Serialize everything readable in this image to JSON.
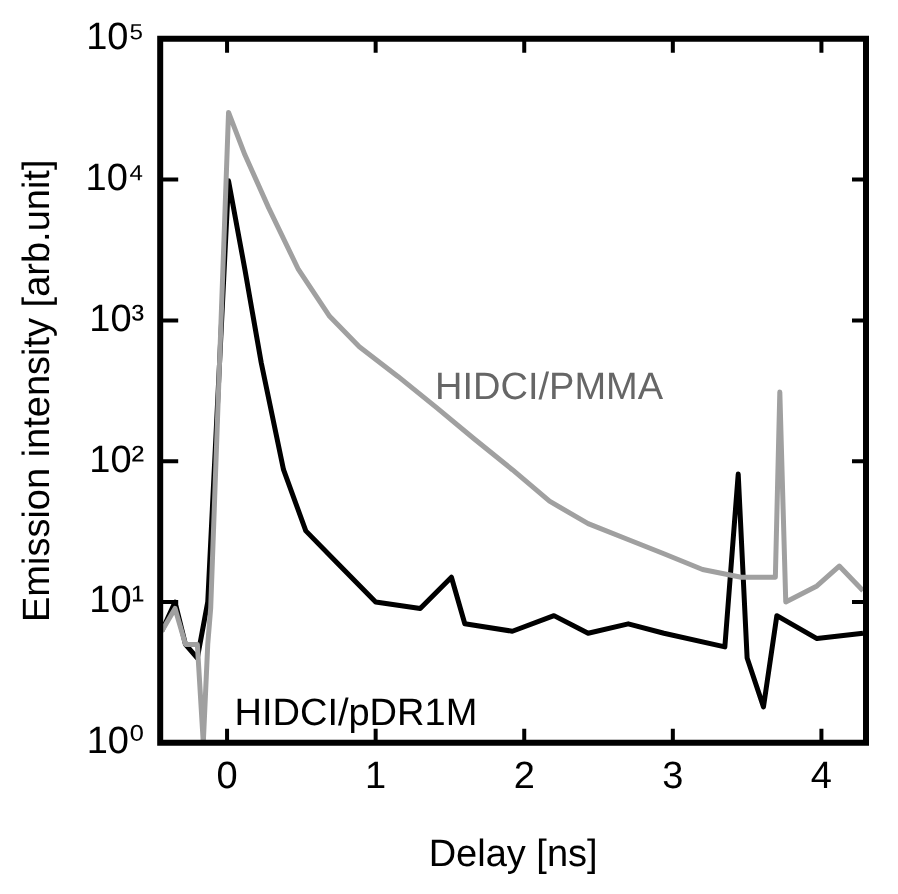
{
  "chart_data": {
    "type": "line",
    "xlabel": "Delay [ns]",
    "ylabel": "Emission intensity [arb.unit]",
    "log": "y",
    "grid": false,
    "legend": false,
    "marker": "none",
    "line_style": "solid",
    "xlim": [
      -0.45,
      4.3
    ],
    "xticks": [
      0,
      1,
      2,
      3,
      4
    ],
    "ylim": [
      1,
      100000
    ],
    "yticks": [
      {
        "value": 1,
        "label": "10⁰"
      },
      {
        "value": 10,
        "label": "10¹"
      },
      {
        "value": 100,
        "label": "10²"
      },
      {
        "value": 1000,
        "label": "10³"
      },
      {
        "value": 10000,
        "label": "10⁴"
      },
      {
        "value": 100000,
        "label": "10⁵"
      }
    ],
    "series": [
      {
        "name": "HIDCI/PMMA",
        "color": "#a0a0a0",
        "x": [
          -0.44,
          -0.35,
          -0.28,
          -0.2,
          -0.16,
          -0.13,
          -0.11,
          0.01,
          0.12,
          0.28,
          0.48,
          0.69,
          0.89,
          1.15,
          1.41,
          1.66,
          1.92,
          2.17,
          2.43,
          2.69,
          2.94,
          3.2,
          3.46,
          3.69,
          3.72,
          3.76,
          3.97,
          4.12,
          4.28
        ],
        "values": [
          6.2,
          9,
          5,
          5,
          1,
          5,
          9.1,
          30000,
          15000,
          6300,
          2300,
          1070,
          650,
          400,
          240,
          145,
          87,
          52,
          36,
          28,
          22,
          17,
          15,
          15,
          310,
          10,
          13,
          18,
          12
        ]
      },
      {
        "name": "HIDCI/pDR1M",
        "color": "#000000",
        "x": [
          -0.44,
          -0.35,
          -0.28,
          -0.2,
          -0.13,
          0.01,
          0.12,
          0.23,
          0.38,
          0.53,
          0.74,
          1.0,
          1.3,
          1.51,
          1.6,
          1.92,
          2.2,
          2.43,
          2.7,
          2.94,
          3.35,
          3.44,
          3.5,
          3.61,
          3.7,
          3.97,
          4.28
        ],
        "values": [
          6.2,
          10,
          5,
          4,
          10,
          9800,
          2300,
          500,
          87,
          32,
          19,
          10,
          9,
          15,
          7,
          6.2,
          8,
          6,
          7,
          6,
          4.8,
          81,
          4,
          1.8,
          8,
          5.5,
          6
        ]
      }
    ]
  }
}
